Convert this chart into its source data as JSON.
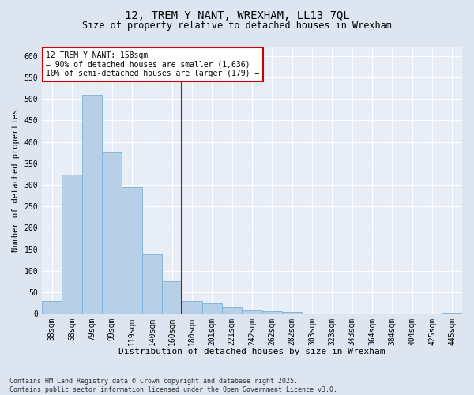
{
  "title": "12, TREM Y NANT, WREXHAM, LL13 7QL",
  "subtitle": "Size of property relative to detached houses in Wrexham",
  "xlabel": "Distribution of detached houses by size in Wrexham",
  "ylabel": "Number of detached properties",
  "categories": [
    "38sqm",
    "58sqm",
    "79sqm",
    "99sqm",
    "119sqm",
    "140sqm",
    "160sqm",
    "180sqm",
    "201sqm",
    "221sqm",
    "242sqm",
    "262sqm",
    "282sqm",
    "303sqm",
    "323sqm",
    "343sqm",
    "364sqm",
    "384sqm",
    "404sqm",
    "425sqm",
    "445sqm"
  ],
  "values": [
    30,
    323,
    510,
    375,
    295,
    138,
    75,
    30,
    25,
    15,
    8,
    5,
    3,
    1,
    1,
    1,
    0,
    0,
    0,
    0,
    2
  ],
  "bar_color": "#b8cfe8",
  "bar_edge_color": "#7fafd4",
  "vline_color": "#cc0000",
  "vline_pos": 6.5,
  "annotation_text": "12 TREM Y NANT: 158sqm\n← 90% of detached houses are smaller (1,636)\n10% of semi-detached houses are larger (179) →",
  "annotation_box_facecolor": "#ffffff",
  "annotation_box_edgecolor": "#cc0000",
  "footer_text": "Contains HM Land Registry data © Crown copyright and database right 2025.\nContains public sector information licensed under the Open Government Licence v3.0.",
  "background_color": "#dde5f0",
  "plot_background_color": "#e8eef8",
  "grid_color": "#ffffff",
  "ylim": [
    0,
    620
  ],
  "yticks": [
    0,
    50,
    100,
    150,
    200,
    250,
    300,
    350,
    400,
    450,
    500,
    550,
    600
  ],
  "title_fontsize": 10,
  "subtitle_fontsize": 8.5,
  "xlabel_fontsize": 8,
  "ylabel_fontsize": 7.5,
  "tick_fontsize": 7,
  "annotation_fontsize": 7,
  "footer_fontsize": 6
}
